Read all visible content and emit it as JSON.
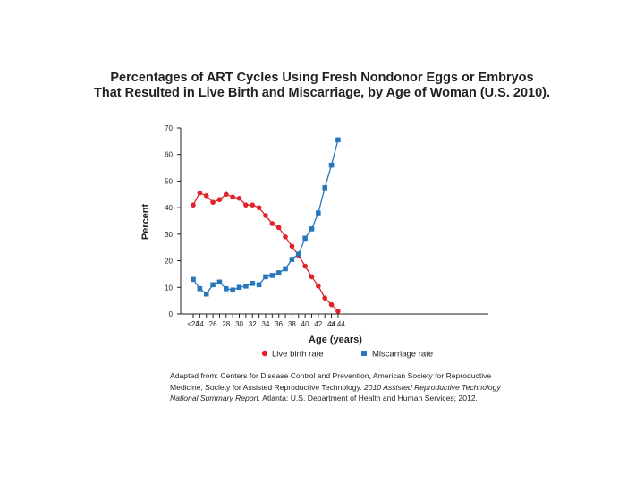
{
  "title_line1": "Percentages of ART Cycles Using Fresh Nondonor Eggs or Embryos",
  "title_line2": "That Resulted in Live Birth and Miscarriage, by Age of Woman (U.S. 2010).",
  "source": {
    "part1": "Adapted from: Centers for Disease Control and Prevention, American Society for Reproductive Medicine, Society for Assisted Reproductive Technology. ",
    "part2": "2010 Assisted Reproductive Technology National Summary Report.",
    "part3": " Atlanta: U.S. Department of Health and Human Services; 2012."
  },
  "chart_data": {
    "type": "line",
    "title": "Percentages of ART Cycles Using Fresh Nondonor Eggs or Embryos That Resulted in Live Birth and Miscarriage, by Age of Woman (U.S. 2010).",
    "xlabel": "Age (years)",
    "ylabel": "Percent",
    "x": [
      "<24",
      "24",
      "25",
      "26",
      "27",
      "28",
      "29",
      "30",
      "31",
      "32",
      "33",
      "34",
      "35",
      "36",
      "37",
      "38",
      "39",
      "40",
      "41",
      "42",
      "43",
      "44",
      "> 44"
    ],
    "x_ticks": [
      "<24",
      "24",
      "26",
      "28",
      "30",
      "32",
      "34",
      "36",
      "38",
      "40",
      "42",
      "44",
      "> 44"
    ],
    "ylim": [
      0,
      70
    ],
    "y_ticks": [
      0,
      10,
      20,
      30,
      40,
      50,
      60,
      70
    ],
    "grid": false,
    "legend_position": "bottom",
    "series": [
      {
        "name": "Live birth rate",
        "color": "#e2222b",
        "marker": "circle",
        "values": [
          41,
          45.5,
          44.5,
          42,
          43,
          45,
          44,
          43.5,
          41,
          41,
          40,
          37,
          34,
          32.5,
          29,
          25.5,
          22,
          18,
          14,
          10.5,
          6,
          3.5,
          1
        ]
      },
      {
        "name": "Miscarriage rate",
        "color": "#2777bc",
        "marker": "square",
        "values": [
          13,
          9.5,
          7.5,
          11,
          12,
          9.5,
          9,
          10,
          10.5,
          11.5,
          11,
          14,
          14.5,
          15.5,
          17,
          20.5,
          22.5,
          28.5,
          32,
          38,
          47.5,
          56,
          65.5
        ]
      }
    ]
  }
}
